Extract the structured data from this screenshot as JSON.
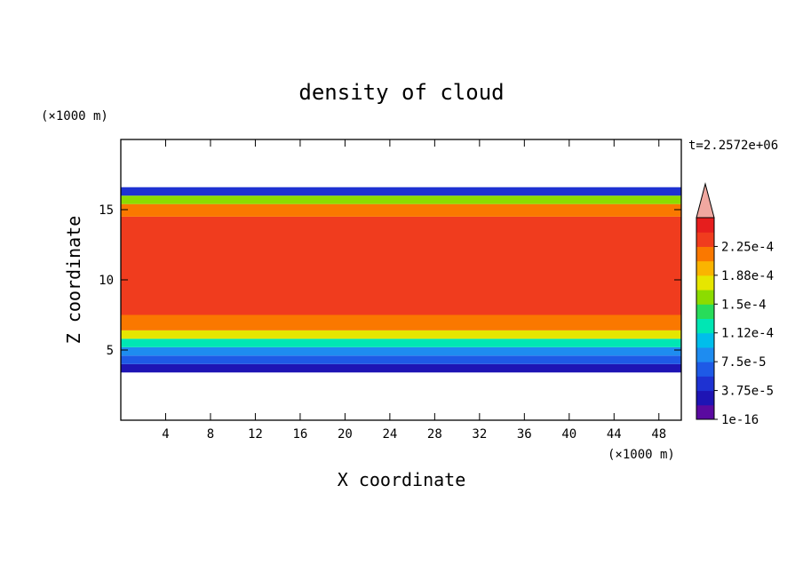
{
  "chart_data": {
    "type": "heatmap",
    "title": "density of cloud",
    "xlabel": "X coordinate",
    "ylabel": "Z coordinate",
    "x_unit": "(×1000 m)",
    "y_unit": "(×1000 m)",
    "time_label": "t=2.2572e+06",
    "xlim": [
      0,
      50
    ],
    "ylim": [
      0,
      20
    ],
    "x_ticks": [
      4,
      8,
      12,
      16,
      20,
      24,
      28,
      32,
      36,
      40,
      44,
      48
    ],
    "y_ticks": [
      5,
      10,
      15
    ],
    "colorbar": {
      "labels": [
        "1e-16",
        "3.75e-5",
        "7.5e-5",
        "1.12e-4",
        "1.5e-4",
        "1.88e-4",
        "2.25e-4"
      ],
      "levels": [
        1e-16,
        1.875e-05,
        3.75e-05,
        5.625e-05,
        7.5e-05,
        9.375e-05,
        0.0001125,
        0.00013125,
        0.00015,
        0.00016875,
        0.0001875,
        0.00020625,
        0.000225,
        0.00024375
      ],
      "colors": [
        "#5a0aa0",
        "#1e14b4",
        "#1e32d2",
        "#1e5ae6",
        "#1e8cf0",
        "#00beeb",
        "#00e6b4",
        "#28dc5a",
        "#8cdc00",
        "#e6e600",
        "#fab400",
        "#fa7800",
        "#f03c1e",
        "#e61e1e"
      ],
      "over_color": "#f0a8a0"
    },
    "cloud_layer": {
      "base_z": 3.4,
      "top_z": 16.6
    },
    "profile": [
      {
        "z": 3.4,
        "density": 1e-16
      },
      {
        "z": 4.0,
        "density": 3.75e-05
      },
      {
        "z": 4.6,
        "density": 7.5e-05
      },
      {
        "z": 5.2,
        "density": 0.000112
      },
      {
        "z": 5.8,
        "density": 0.00015
      },
      {
        "z": 6.4,
        "density": 0.000188
      },
      {
        "z": 7.5,
        "density": 0.000225
      },
      {
        "z": 14.5,
        "density": 0.000225
      },
      {
        "z": 15.4,
        "density": 0.000188
      },
      {
        "z": 16.0,
        "density": 0.000112
      },
      {
        "z": 16.6,
        "density": 1e-16
      }
    ]
  }
}
